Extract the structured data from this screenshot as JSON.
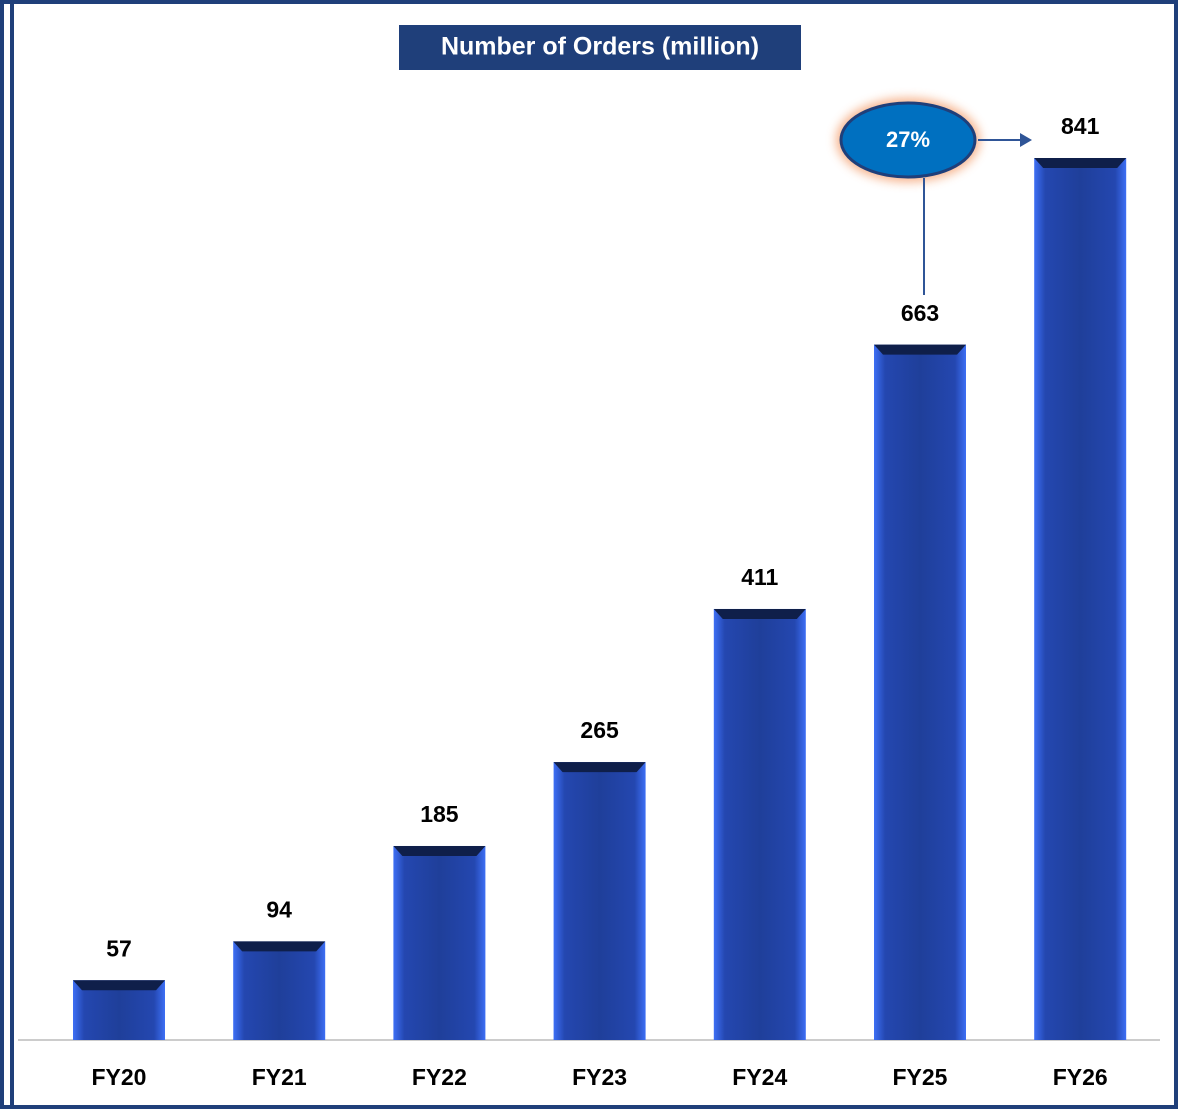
{
  "chart_data": {
    "type": "bar",
    "title": "Number of Orders (million)",
    "categories": [
      "FY20",
      "FY21",
      "FY22",
      "FY23",
      "FY24",
      "FY25",
      "FY26"
    ],
    "values": [
      57,
      94,
      185,
      265,
      411,
      663,
      841
    ],
    "color": "#1f3f9a",
    "annotation": "27%"
  }
}
